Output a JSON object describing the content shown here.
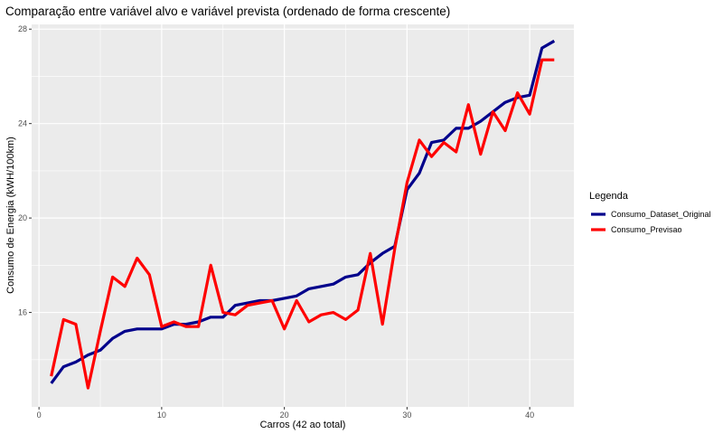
{
  "chart_data": {
    "type": "line",
    "title": "Comparação entre variável alvo e variável prevista (ordenado de forma crescente)",
    "xlabel": "Carros (42 ao total)",
    "ylabel": "Consumo de Energia (kWH/100km)",
    "xlim": [
      -0.6,
      43.6
    ],
    "ylim": [
      12.0,
      28.2
    ],
    "x_ticks": [
      0,
      10,
      20,
      30,
      40
    ],
    "y_ticks": [
      16,
      20,
      24,
      28
    ],
    "grid": true,
    "legend": {
      "title": "Legenda",
      "position": "right"
    },
    "x": [
      1,
      2,
      3,
      4,
      5,
      6,
      7,
      8,
      9,
      10,
      11,
      12,
      13,
      14,
      15,
      16,
      17,
      18,
      19,
      20,
      21,
      22,
      23,
      24,
      25,
      26,
      27,
      28,
      29,
      30,
      31,
      32,
      33,
      34,
      35,
      36,
      37,
      38,
      39,
      40,
      41,
      42
    ],
    "series": [
      {
        "name": "Consumo_Dataset_Original",
        "color": "#00008b",
        "values": [
          13.0,
          13.7,
          13.9,
          14.2,
          14.4,
          14.9,
          15.2,
          15.3,
          15.3,
          15.3,
          15.5,
          15.5,
          15.6,
          15.8,
          15.8,
          16.3,
          16.4,
          16.5,
          16.5,
          16.6,
          16.7,
          17.0,
          17.1,
          17.2,
          17.5,
          17.6,
          18.1,
          18.5,
          18.8,
          21.2,
          21.9,
          23.2,
          23.3,
          23.8,
          23.8,
          24.1,
          24.5,
          24.9,
          25.1,
          25.2,
          27.2,
          27.5
        ]
      },
      {
        "name": "Consumo_Previsao",
        "color": "#ff0000",
        "values": [
          13.3,
          15.7,
          15.5,
          12.8,
          15.2,
          17.5,
          17.1,
          18.3,
          17.6,
          15.4,
          15.6,
          15.4,
          15.4,
          18.0,
          16.0,
          15.9,
          16.3,
          16.4,
          16.5,
          15.3,
          16.5,
          15.6,
          15.9,
          16.0,
          15.7,
          16.1,
          18.5,
          15.5,
          18.7,
          21.5,
          23.3,
          22.6,
          23.2,
          22.8,
          24.8,
          22.7,
          24.5,
          23.7,
          25.3,
          24.4,
          26.7,
          26.7
        ]
      }
    ]
  }
}
